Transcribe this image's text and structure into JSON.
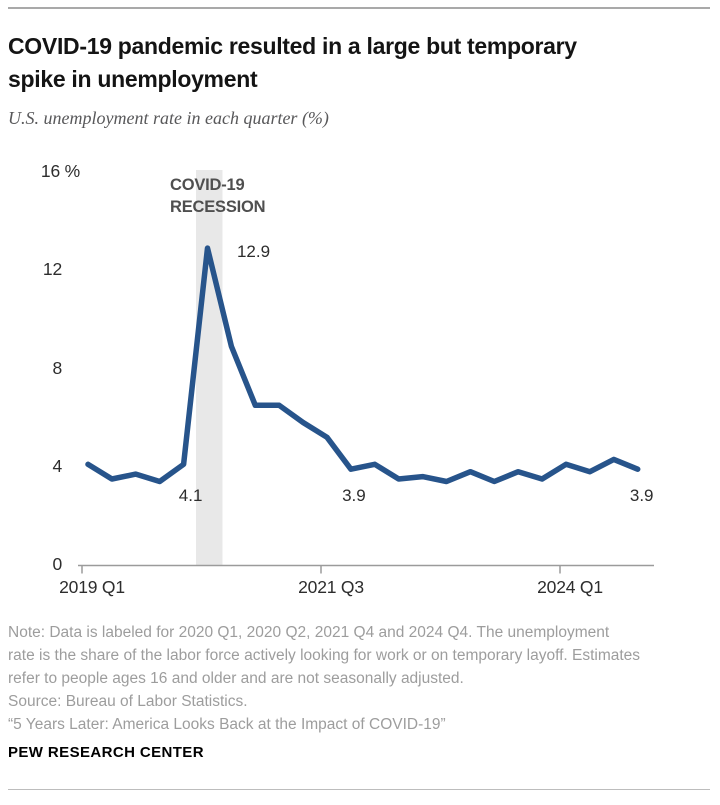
{
  "header": {
    "title_lines": [
      "COVID-19 pandemic resulted in a large but temporary",
      "spike in unemployment"
    ],
    "subtitle": "U.S. unemployment rate in each quarter (%)"
  },
  "chart_data": {
    "type": "line",
    "title": "COVID-19 pandemic resulted in a large but temporary spike in unemployment",
    "subtitle": "U.S. unemployment rate in each quarter (%)",
    "x": [
      "2019 Q1",
      "2019 Q2",
      "2019 Q3",
      "2019 Q4",
      "2020 Q1",
      "2020 Q2",
      "2020 Q3",
      "2020 Q4",
      "2021 Q1",
      "2021 Q2",
      "2021 Q3",
      "2021 Q4",
      "2022 Q1",
      "2022 Q2",
      "2022 Q3",
      "2022 Q4",
      "2023 Q1",
      "2023 Q2",
      "2023 Q3",
      "2023 Q4",
      "2024 Q1",
      "2024 Q2",
      "2024 Q3",
      "2024 Q4"
    ],
    "values": [
      4.1,
      3.5,
      3.7,
      3.4,
      4.1,
      12.9,
      8.9,
      6.5,
      6.5,
      5.8,
      5.2,
      3.9,
      4.1,
      3.5,
      3.6,
      3.4,
      3.8,
      3.4,
      3.8,
      3.5,
      4.1,
      3.8,
      4.3,
      3.9
    ],
    "ylim": [
      0,
      16
    ],
    "grid": "off",
    "yticks": [
      {
        "value": 16,
        "label": "16 %"
      },
      {
        "value": 12,
        "label": "12"
      },
      {
        "value": 8,
        "label": "8"
      },
      {
        "value": 4,
        "label": "4"
      },
      {
        "value": 0,
        "label": "0"
      }
    ],
    "xticks": {
      "indices": [
        0,
        10,
        20
      ],
      "labels": [
        "2019 Q1",
        "2021 Q3",
        "2024 Q1"
      ]
    },
    "point_labels": [
      {
        "index": 4,
        "quarter": "2020 Q1",
        "text": "4.1"
      },
      {
        "index": 5,
        "quarter": "2020 Q2",
        "text": "12.9"
      },
      {
        "index": 11,
        "quarter": "2021 Q4",
        "text": "3.9"
      },
      {
        "index": 23,
        "quarter": "2024 Q4",
        "text": "3.9"
      }
    ],
    "recession_band": {
      "label_lines": [
        "COVID-19",
        "RECESSION"
      ],
      "covers": [
        "2020 Q2"
      ]
    },
    "colors": {
      "line": "#27548b",
      "band": "#e8e8e8",
      "axis": "#9b9b9b",
      "text": "#2d2d2d",
      "annotation": "#4f4f4f"
    }
  },
  "footer": {
    "note_lines": [
      "Note: Data is labeled for 2020 Q1, 2020 Q2, 2021 Q4 and 2024 Q4. The unemployment",
      "rate is the share of the labor force actively looking for work or on temporary layoff. Estimates",
      "refer to people ages 16 and older and are not seasonally adjusted."
    ],
    "source": "Source: Bureau of Labor Statistics.",
    "quote": "“5 Years Later: America Looks Back at the Impact of COVID-19”",
    "brand": "PEW RESEARCH CENTER"
  }
}
